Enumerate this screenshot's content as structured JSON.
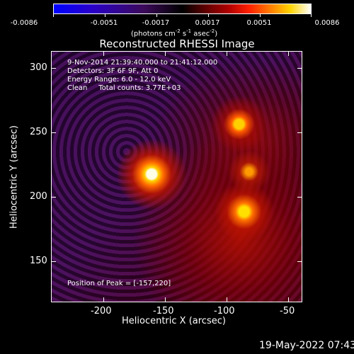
{
  "colorbar": {
    "labels": [
      "-0.0086",
      "-0.0051",
      "-0.0017",
      "0.0017",
      "0.0051",
      "0.0086"
    ],
    "units": {
      "prefix": "(photons cm",
      "exp1": "-2",
      "mid1": " s",
      "exp2": "-1",
      "mid2": " asec",
      "exp3": "-2",
      "suffix": ")"
    },
    "colors": [
      "#0000ff",
      "#000000",
      "#ff0000",
      "#ffd400",
      "#ffffff"
    ]
  },
  "plot": {
    "title": "Reconstructed RHESSI Image",
    "info_lines": [
      "9-Nov-2014 21:39:40.000 to 21:41:12.000",
      "Detectors: 3F 6F 9F, Att 0",
      "Energy Range: 6.0 - 12.0 keV",
      "Clean     Total counts: 3.77E+03"
    ],
    "peak_text": "Position of Peak = [-157,220]",
    "xlabel": "Heliocentric X (arcsec)",
    "ylabel": "Heliocentric Y (arcsec)",
    "xticks": [
      "-200",
      "-150",
      "-100",
      "-50"
    ],
    "yticks": [
      "300",
      "250",
      "200",
      "150"
    ]
  },
  "timestamp": "19-May-2022 07:43"
}
